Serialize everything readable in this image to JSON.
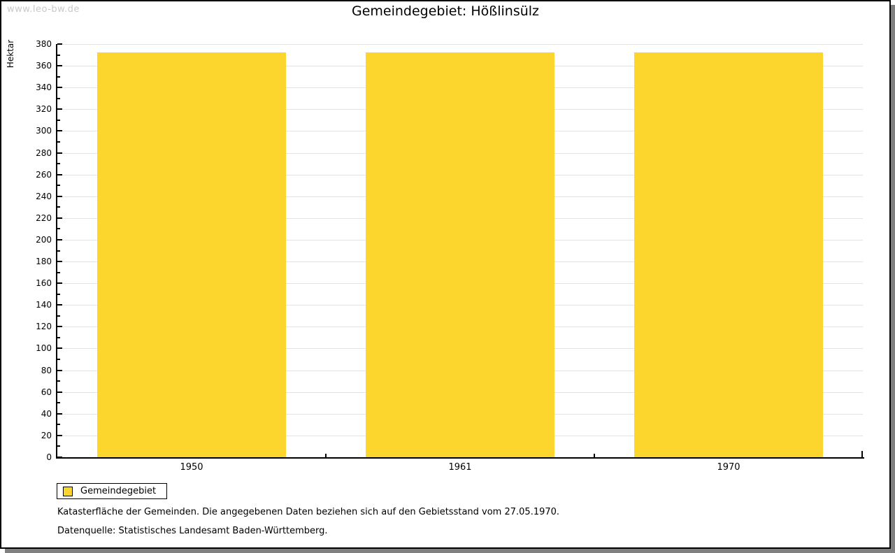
{
  "watermark": "www.leo-bw.de",
  "title": "Gemeindegebiet: Hößlinsülz",
  "chart_data": {
    "type": "bar",
    "title": "Gemeindegebiet: Hößlinsülz",
    "xlabel": "",
    "ylabel": "Hektar",
    "categories": [
      "1950",
      "1961",
      "1970"
    ],
    "series": [
      {
        "name": "Gemeindegebiet",
        "values": [
          372,
          372,
          372
        ]
      }
    ],
    "ylim": [
      0,
      380
    ],
    "ytick_major_step": 20,
    "ytick_minor_step": 10,
    "yticks": [
      0,
      20,
      40,
      60,
      80,
      100,
      120,
      140,
      160,
      180,
      200,
      220,
      240,
      260,
      280,
      300,
      320,
      340,
      360,
      380
    ],
    "grid": "horizontal gridlines at major ticks",
    "legend_position": "bottom-left outside plot"
  },
  "legend": {
    "label": "Gemeindegebiet"
  },
  "footnotes": [
    "Katasterfläche der Gemeinden. Die angegebenen Daten beziehen sich auf den Gebietsstand vom 27.05.1970.",
    "Datenquelle: Statistisches Landesamt Baden-Württemberg."
  ],
  "colors": {
    "bar": "#FCD52D",
    "grid": "#E3E3E3",
    "axis": "#000000",
    "text": "#000000",
    "watermark": "#C9C9C9",
    "shadow": "#808080",
    "background": "#FFFFFF"
  }
}
